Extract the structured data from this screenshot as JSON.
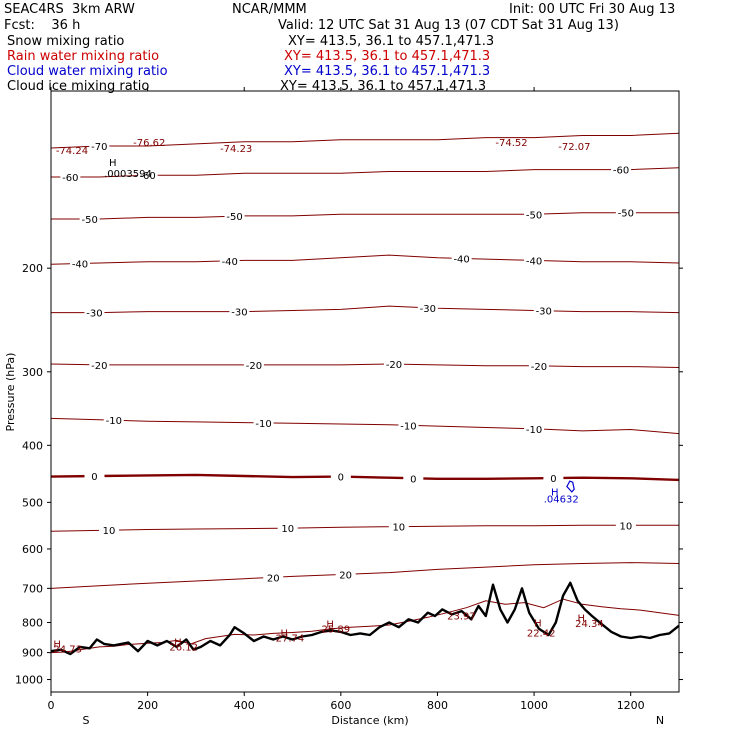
{
  "header": {
    "model": "SEAC4RS  3km ARW",
    "org": "NCAR/MMM",
    "init": "Init: 00 UTC Fri 30 Aug 13",
    "fcst": "Fcst:    36 h",
    "valid": "Valid: 12 UTC Sat 31 Aug 13 (07 CDT Sat 31 Aug 13)",
    "fields": [
      {
        "name": "Snow mixing ratio",
        "xy": "XY= 413.5, 36.1 to 457.1,471.3",
        "color": "#000000"
      },
      {
        "name": "Rain water mixing ratio",
        "xy": "XY= 413.5, 36.1 to 457.1,471.3",
        "color": "#cc0000"
      },
      {
        "name": "Cloud water mixing ratio",
        "xy": "XY= 413.5, 36.1 to 457.1,471.3",
        "color": "#0000cc"
      },
      {
        "name": "Cloud ice mixing ratio",
        "xy": "XY= 413.5, 36.1 to 457.1,471.3",
        "color": "#000000"
      }
    ]
  },
  "chart_data": {
    "type": "line",
    "xlabel": "Distance (km)",
    "ylabel": "Pressure (hPa)",
    "xlim": [
      0,
      1300
    ],
    "ylim": [
      1050,
      100
    ],
    "y_scale": "log",
    "x_ticks": [
      0,
      200,
      400,
      600,
      800,
      1000,
      1200
    ],
    "y_ticks": [
      200,
      300,
      400,
      500,
      600,
      700,
      800,
      900,
      1000
    ],
    "x_end_labels": {
      "left": "S",
      "right": "N"
    },
    "colors": {
      "isotherm": "#800000",
      "freezing": "#800000",
      "terrain": "#000000",
      "cloud": "#0000cc"
    },
    "isotherms": [
      {
        "temp": -70,
        "p": [
          125,
          124,
          124,
          123,
          122,
          122,
          121,
          121,
          121,
          120,
          120,
          119,
          119,
          118
        ],
        "labels": [
          {
            "x": 100,
            "text": "-70"
          }
        ]
      },
      {
        "temp": -60,
        "p": [
          140,
          140,
          139,
          139,
          138,
          138,
          138,
          137,
          137,
          137,
          136,
          136,
          136,
          135
        ],
        "labels": [
          {
            "x": 40,
            "text": "-60"
          },
          {
            "x": 200,
            "text": "-60"
          },
          {
            "x": 1180,
            "text": "-60"
          }
        ]
      },
      {
        "temp": -50,
        "p": [
          165,
          165,
          164,
          164,
          163,
          163,
          162,
          162,
          162,
          162,
          162,
          161,
          161,
          161
        ],
        "labels": [
          {
            "x": 80,
            "text": "-50"
          },
          {
            "x": 380,
            "text": "-50"
          },
          {
            "x": 1000,
            "text": "-50"
          },
          {
            "x": 1190,
            "text": "-50"
          }
        ]
      },
      {
        "temp": -40,
        "p": [
          197,
          196,
          195,
          195,
          194,
          194,
          192,
          190,
          192,
          193,
          194,
          195,
          195,
          196
        ],
        "labels": [
          {
            "x": 60,
            "text": "-40"
          },
          {
            "x": 370,
            "text": "-40"
          },
          {
            "x": 850,
            "text": "-40"
          },
          {
            "x": 1000,
            "text": "-40"
          }
        ]
      },
      {
        "temp": -30,
        "p": [
          238,
          238,
          237,
          237,
          237,
          236,
          235,
          232,
          234,
          235,
          236,
          237,
          237,
          238
        ],
        "labels": [
          {
            "x": 90,
            "text": "-30"
          },
          {
            "x": 390,
            "text": "-30"
          },
          {
            "x": 780,
            "text": "-30"
          },
          {
            "x": 1020,
            "text": "-30"
          }
        ]
      },
      {
        "temp": -20,
        "p": [
          291,
          292,
          292,
          292,
          292,
          292,
          292,
          291,
          292,
          293,
          293,
          294,
          294,
          295
        ],
        "labels": [
          {
            "x": 100,
            "text": "-20"
          },
          {
            "x": 420,
            "text": "-20"
          },
          {
            "x": 710,
            "text": "-20"
          },
          {
            "x": 1010,
            "text": "-20"
          }
        ]
      },
      {
        "temp": -10,
        "p": [
          360,
          362,
          364,
          365,
          366,
          367,
          368,
          369,
          371,
          373,
          375,
          378,
          376,
          382
        ],
        "labels": [
          {
            "x": 130,
            "text": "-10"
          },
          {
            "x": 440,
            "text": "-10"
          },
          {
            "x": 740,
            "text": "-10"
          },
          {
            "x": 1000,
            "text": "-10"
          }
        ]
      },
      {
        "temp": 0,
        "p": [
          452,
          451,
          450,
          449,
          451,
          453,
          452,
          454,
          456,
          456,
          455,
          454,
          455,
          458
        ],
        "labels": [
          {
            "x": 90,
            "text": "0"
          },
          {
            "x": 600,
            "text": "0"
          },
          {
            "x": 750,
            "text": "0"
          },
          {
            "x": 1040,
            "text": "0"
          }
        ],
        "bold": true
      },
      {
        "temp": 10,
        "p": [
          560,
          558,
          556,
          555,
          554,
          553,
          551,
          550,
          549,
          548,
          548,
          547,
          547,
          547
        ],
        "labels": [
          {
            "x": 120,
            "text": "10"
          },
          {
            "x": 490,
            "text": "10"
          },
          {
            "x": 720,
            "text": "10"
          },
          {
            "x": 1190,
            "text": "10"
          }
        ]
      },
      {
        "temp": 20,
        "p": [
          700,
          693,
          686,
          680,
          674,
          668,
          663,
          658,
          650,
          644,
          638,
          635,
          633,
          635
        ],
        "labels": [
          {
            "x": 460,
            "text": "20"
          },
          {
            "x": 610,
            "text": "20"
          }
        ]
      }
    ],
    "terrain": [
      {
        "x": 0,
        "p": 895
      },
      {
        "x": 20,
        "p": 890
      },
      {
        "x": 40,
        "p": 905
      },
      {
        "x": 60,
        "p": 880
      },
      {
        "x": 80,
        "p": 885
      },
      {
        "x": 95,
        "p": 855
      },
      {
        "x": 110,
        "p": 870
      },
      {
        "x": 130,
        "p": 875
      },
      {
        "x": 160,
        "p": 865
      },
      {
        "x": 180,
        "p": 895
      },
      {
        "x": 200,
        "p": 860
      },
      {
        "x": 220,
        "p": 875
      },
      {
        "x": 240,
        "p": 860
      },
      {
        "x": 260,
        "p": 880
      },
      {
        "x": 280,
        "p": 855
      },
      {
        "x": 295,
        "p": 890
      },
      {
        "x": 310,
        "p": 880
      },
      {
        "x": 330,
        "p": 860
      },
      {
        "x": 350,
        "p": 875
      },
      {
        "x": 370,
        "p": 840
      },
      {
        "x": 380,
        "p": 815
      },
      {
        "x": 400,
        "p": 835
      },
      {
        "x": 420,
        "p": 860
      },
      {
        "x": 440,
        "p": 845
      },
      {
        "x": 460,
        "p": 855
      },
      {
        "x": 480,
        "p": 845
      },
      {
        "x": 500,
        "p": 855
      },
      {
        "x": 520,
        "p": 845
      },
      {
        "x": 540,
        "p": 840
      },
      {
        "x": 560,
        "p": 830
      },
      {
        "x": 580,
        "p": 825
      },
      {
        "x": 600,
        "p": 830
      },
      {
        "x": 620,
        "p": 840
      },
      {
        "x": 640,
        "p": 835
      },
      {
        "x": 660,
        "p": 840
      },
      {
        "x": 680,
        "p": 815
      },
      {
        "x": 700,
        "p": 800
      },
      {
        "x": 720,
        "p": 815
      },
      {
        "x": 740,
        "p": 790
      },
      {
        "x": 760,
        "p": 800
      },
      {
        "x": 780,
        "p": 770
      },
      {
        "x": 795,
        "p": 780
      },
      {
        "x": 810,
        "p": 760
      },
      {
        "x": 830,
        "p": 775
      },
      {
        "x": 850,
        "p": 765
      },
      {
        "x": 870,
        "p": 790
      },
      {
        "x": 885,
        "p": 750
      },
      {
        "x": 900,
        "p": 780
      },
      {
        "x": 915,
        "p": 690
      },
      {
        "x": 930,
        "p": 760
      },
      {
        "x": 945,
        "p": 800
      },
      {
        "x": 960,
        "p": 760
      },
      {
        "x": 975,
        "p": 700
      },
      {
        "x": 990,
        "p": 770
      },
      {
        "x": 1010,
        "p": 820
      },
      {
        "x": 1030,
        "p": 840
      },
      {
        "x": 1045,
        "p": 800
      },
      {
        "x": 1060,
        "p": 720
      },
      {
        "x": 1075,
        "p": 685
      },
      {
        "x": 1090,
        "p": 735
      },
      {
        "x": 1105,
        "p": 760
      },
      {
        "x": 1120,
        "p": 780
      },
      {
        "x": 1140,
        "p": 805
      },
      {
        "x": 1160,
        "p": 830
      },
      {
        "x": 1180,
        "p": 845
      },
      {
        "x": 1200,
        "p": 850
      },
      {
        "x": 1220,
        "p": 845
      },
      {
        "x": 1240,
        "p": 850
      },
      {
        "x": 1260,
        "p": 840
      },
      {
        "x": 1280,
        "p": 835
      },
      {
        "x": 1300,
        "p": 810
      }
    ],
    "rain_surface": [
      {
        "x": 0,
        "p": 900
      },
      {
        "x": 30,
        "p": 898
      },
      {
        "x": 60,
        "p": 890
      },
      {
        "x": 100,
        "p": 880
      },
      {
        "x": 130,
        "p": 878
      },
      {
        "x": 160,
        "p": 872
      },
      {
        "x": 200,
        "p": 868
      },
      {
        "x": 230,
        "p": 865
      },
      {
        "x": 260,
        "p": 858
      },
      {
        "x": 290,
        "p": 870
      },
      {
        "x": 320,
        "p": 852
      },
      {
        "x": 350,
        "p": 845
      },
      {
        "x": 380,
        "p": 838
      },
      {
        "x": 420,
        "p": 840
      },
      {
        "x": 460,
        "p": 835
      },
      {
        "x": 500,
        "p": 832
      },
      {
        "x": 540,
        "p": 828
      },
      {
        "x": 580,
        "p": 820
      },
      {
        "x": 620,
        "p": 815
      },
      {
        "x": 660,
        "p": 812
      },
      {
        "x": 700,
        "p": 808
      },
      {
        "x": 740,
        "p": 796
      },
      {
        "x": 780,
        "p": 784
      },
      {
        "x": 820,
        "p": 770
      },
      {
        "x": 860,
        "p": 755
      },
      {
        "x": 900,
        "p": 735
      },
      {
        "x": 940,
        "p": 745
      },
      {
        "x": 980,
        "p": 740
      },
      {
        "x": 1020,
        "p": 755
      },
      {
        "x": 1060,
        "p": 730
      },
      {
        "x": 1100,
        "p": 745
      },
      {
        "x": 1140,
        "p": 752
      },
      {
        "x": 1180,
        "p": 758
      },
      {
        "x": 1220,
        "p": 762
      },
      {
        "x": 1260,
        "p": 770
      },
      {
        "x": 1300,
        "p": 778
      }
    ],
    "cloud_water_contour": [
      {
        "x": 1068,
        "p": 470
      },
      {
        "x": 1074,
        "p": 460
      },
      {
        "x": 1080,
        "p": 462
      },
      {
        "x": 1083,
        "p": 475
      },
      {
        "x": 1078,
        "p": 480
      }
    ],
    "annotations": [
      {
        "x": 10,
        "p": 128,
        "text": "-74.24",
        "color": "#800000"
      },
      {
        "x": 170,
        "p": 124,
        "text": "-76.62",
        "color": "#800000"
      },
      {
        "x": 350,
        "p": 127,
        "text": "-74.23",
        "color": "#800000"
      },
      {
        "x": 1050,
        "p": 126,
        "text": "-72.07",
        "color": "#800000"
      },
      {
        "x": 920,
        "p": 124,
        "text": "-74.52",
        "color": "#800000"
      },
      {
        "x": 120,
        "p": 134,
        "text": "H",
        "color": "#000000"
      },
      {
        "x": 110,
        "p": 140,
        "text": ".0003594",
        "color": "#000000"
      },
      {
        "x": 1035,
        "p": 487,
        "text": "H",
        "color": "#0000cc"
      },
      {
        "x": 1020,
        "p": 500,
        "text": ".04632",
        "color": "#0000cc"
      },
      {
        "x": 5,
        "p": 882,
        "text": "H",
        "color": "#800000"
      },
      {
        "x": 5,
        "p": 900,
        "text": "24.73",
        "color": "#800000"
      },
      {
        "x": 255,
        "p": 875,
        "text": "H",
        "color": "#800000"
      },
      {
        "x": 245,
        "p": 893,
        "text": "26.12",
        "color": "#800000"
      },
      {
        "x": 475,
        "p": 845,
        "text": "H",
        "color": "#800000"
      },
      {
        "x": 465,
        "p": 862,
        "text": "27.74",
        "color": "#800000"
      },
      {
        "x": 570,
        "p": 816,
        "text": "H",
        "color": "#800000"
      },
      {
        "x": 560,
        "p": 832,
        "text": "25.89",
        "color": "#800000"
      },
      {
        "x": 820,
        "p": 790,
        "text": "23.97",
        "color": "#800000"
      },
      {
        "x": 1000,
        "p": 812,
        "text": "H",
        "color": "#800000"
      },
      {
        "x": 985,
        "p": 845,
        "text": "22.42",
        "color": "#800000"
      },
      {
        "x": 1090,
        "p": 797,
        "text": "H",
        "color": "#800000"
      },
      {
        "x": 1085,
        "p": 815,
        "text": "24.34",
        "color": "#800000"
      }
    ]
  }
}
